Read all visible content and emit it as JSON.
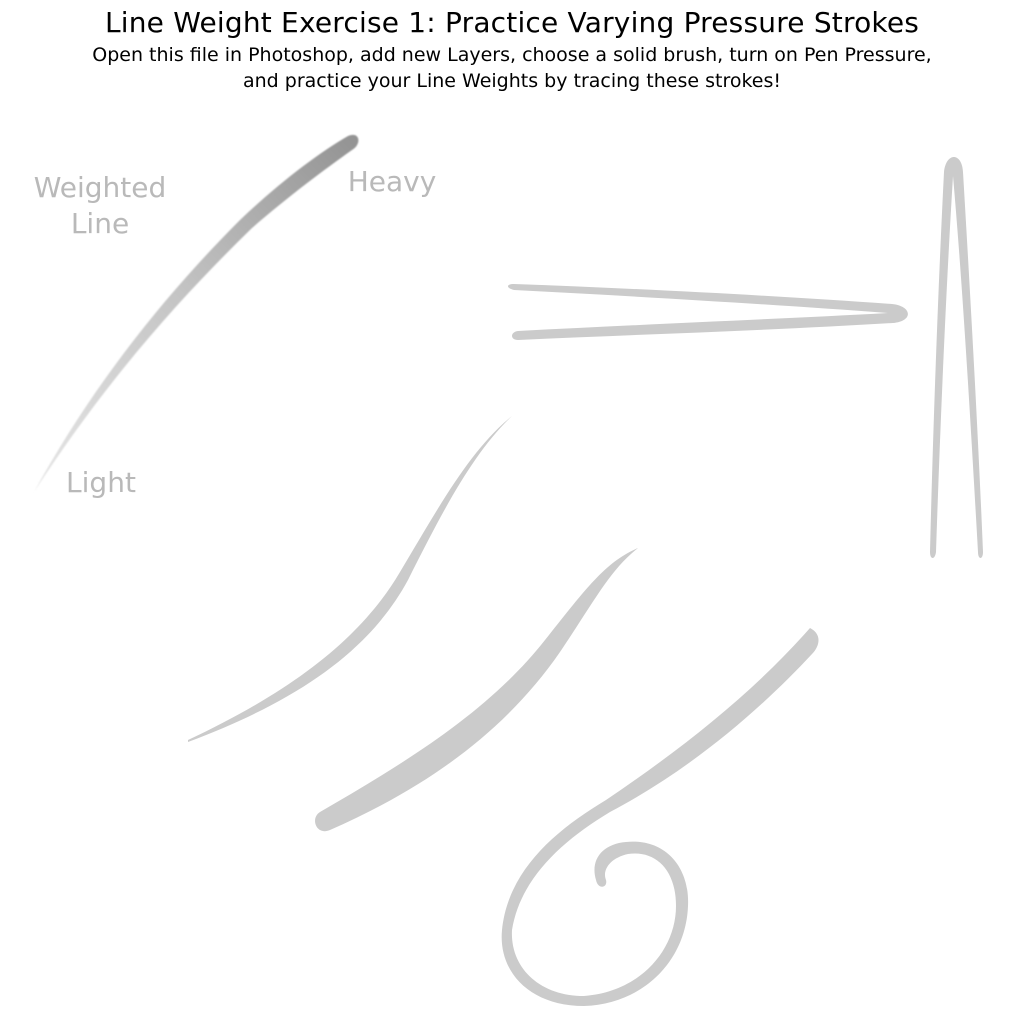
{
  "header": {
    "title": "Line Weight Exercise 1: Practice Varying Pressure Strokes",
    "instructions_line1": "Open this file in Photoshop, add new Layers, choose a solid brush, turn on Pen Pressure,",
    "instructions_line2": "and practice your Line Weights by tracing these strokes!"
  },
  "labels": {
    "weighted_line": "Weighted Line",
    "heavy": "Heavy",
    "light": "Light"
  },
  "colors": {
    "background": "#ffffff",
    "title_text": "#000000",
    "label_text": "#b9b9b9",
    "stroke_gray": "#cccccc",
    "heavy_stroke": "#9a9a9a"
  }
}
